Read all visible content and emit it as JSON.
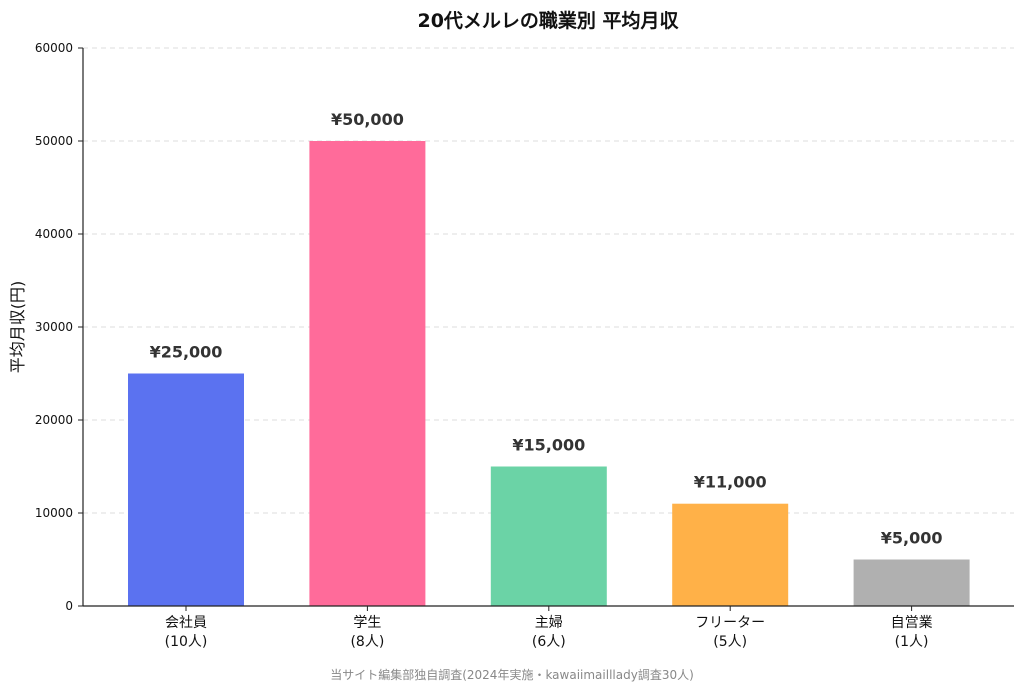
{
  "chart_data": {
    "type": "bar",
    "title": "20代メルレの職業別 平均月収",
    "xlabel": "",
    "ylabel": "平均月収(円)",
    "ylim": [
      0,
      60000
    ],
    "yticks": [
      0,
      10000,
      20000,
      30000,
      40000,
      50000,
      60000
    ],
    "grid": "horizontal-dashed",
    "categories": [
      {
        "name": "会社員",
        "count": "(10人)"
      },
      {
        "name": "学生",
        "count": "(8人)"
      },
      {
        "name": "主婦",
        "count": "(6人)"
      },
      {
        "name": "フリーター",
        "count": "(5人)"
      },
      {
        "name": "自営業",
        "count": "(1人)"
      }
    ],
    "values": [
      25000,
      50000,
      15000,
      11000,
      5000
    ],
    "value_labels": [
      "¥25,000",
      "¥50,000",
      "¥15,000",
      "¥11,000",
      "¥5,000"
    ],
    "colors": [
      "#5B72F0",
      "#FF6B9A",
      "#6BD3A6",
      "#FFB148",
      "#B0B0B0"
    ],
    "source": "当サイト編集部独自調査(2024年実施・kawaiimailllady調査30人)"
  }
}
